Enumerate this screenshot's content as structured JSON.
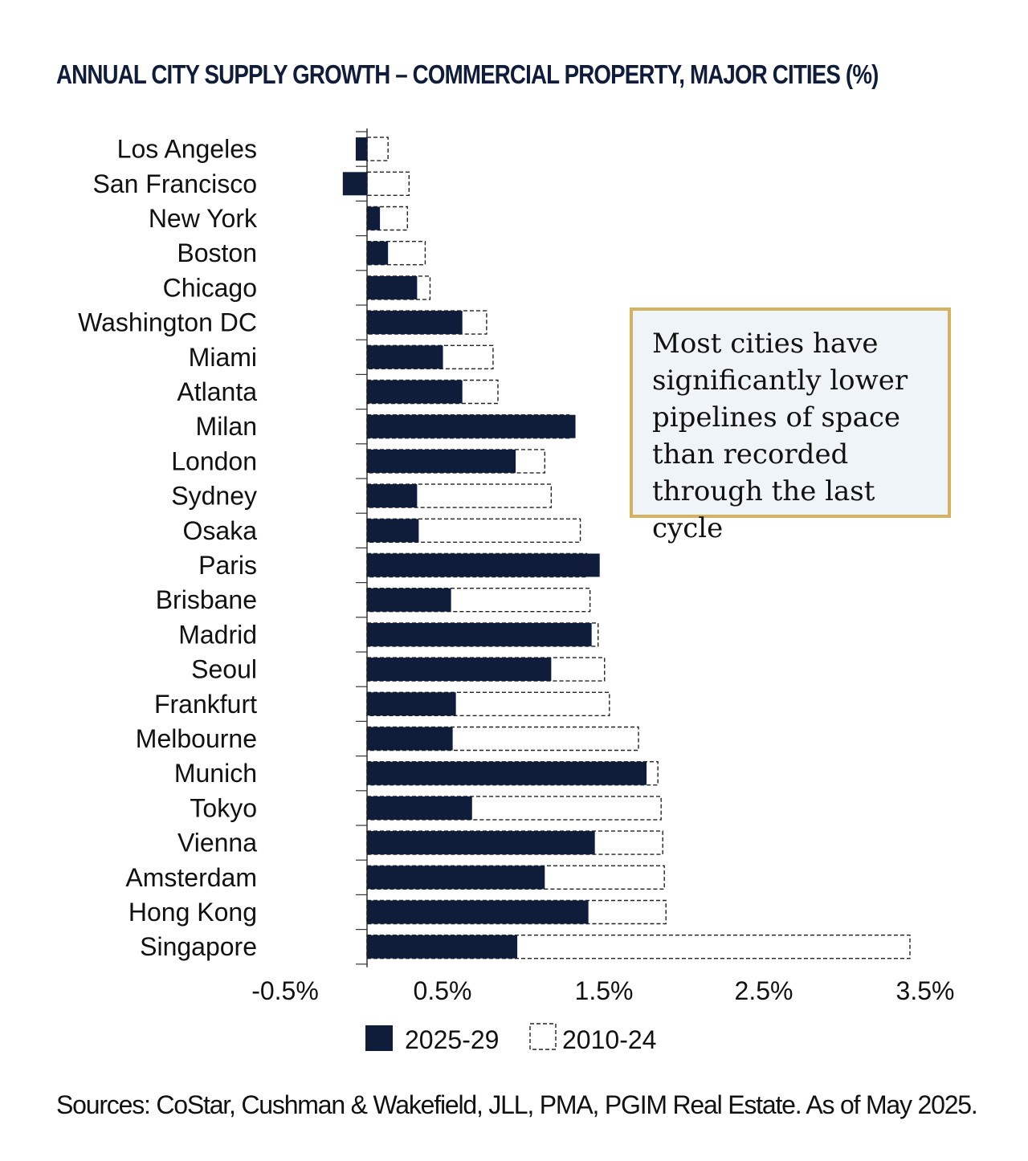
{
  "title": "ANNUAL CITY SUPPLY GROWTH – COMMERCIAL PROPERTY, MAJOR CITIES (%)",
  "callout": {
    "text": "Most cities have significantly lower pipelines of space than recorded through the last cycle"
  },
  "source": "Sources: CoStar, Cushman & Wakefield, JLL, PMA, PGIM Real Estate. As of May 2025.",
  "colors": {
    "series_2025_29": "#0f1d3a",
    "callout_border": "#d4b25f",
    "callout_bg": "#eef4f7"
  },
  "chart_data": {
    "type": "bar",
    "orientation": "horizontal",
    "categories": [
      "Los Angeles",
      "San Francisco",
      "New York",
      "Boston",
      "Chicago",
      "Washington DC",
      "Miami",
      "Atlanta",
      "Milan",
      "London",
      "Sydney",
      "Osaka",
      "Paris",
      "Brisbane",
      "Madrid",
      "Seoul",
      "Frankfurt",
      "Melbourne",
      "Munich",
      "Tokyo",
      "Vienna",
      "Amsterdam",
      "Hong Kong",
      "Singapore"
    ],
    "series": [
      {
        "name": "2025-29",
        "style": "solid",
        "values": [
          -0.07,
          -0.15,
          0.08,
          0.13,
          0.31,
          0.59,
          0.47,
          0.59,
          1.29,
          0.92,
          0.31,
          0.32,
          1.44,
          0.52,
          1.39,
          1.14,
          0.55,
          0.53,
          1.73,
          0.65,
          1.41,
          1.1,
          1.37,
          0.93
        ]
      },
      {
        "name": "2010-24",
        "style": "dashed",
        "values": [
          0.13,
          0.26,
          0.25,
          0.36,
          0.39,
          0.74,
          0.78,
          0.81,
          1.25,
          1.1,
          1.14,
          1.32,
          1.36,
          1.38,
          1.43,
          1.47,
          1.5,
          1.68,
          1.8,
          1.82,
          1.83,
          1.84,
          1.85,
          3.36
        ]
      }
    ],
    "xlim": [
      -0.5,
      3.5
    ],
    "xticks": [
      -0.5,
      0.5,
      1.5,
      2.5,
      3.5
    ],
    "xtick_labels": [
      "-0.5%",
      "0.5%",
      "1.5%",
      "2.5%",
      "3.5%"
    ],
    "xlabel": "",
    "ylabel": "",
    "grid": false,
    "legend": "bottom"
  }
}
